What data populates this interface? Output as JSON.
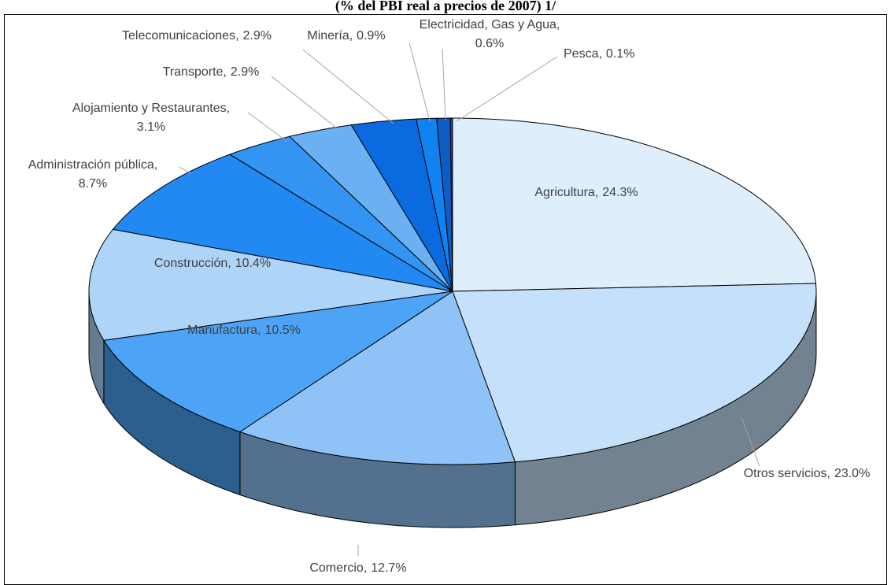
{
  "chart_data": {
    "type": "pie",
    "title": "(% del PBI real a precios de 2007) 1/",
    "categories": [
      "Agricultura",
      "Otros servicios",
      "Comercio",
      "Manufactura",
      "Construcción",
      "Administración pública",
      "Alojamiento y Restaurantes",
      "Transporte",
      "Telecomunicaciones",
      "Minería",
      "Electricidad, Gas y Agua",
      "Pesca"
    ],
    "values": [
      24.3,
      23.0,
      12.7,
      10.5,
      10.4,
      8.7,
      3.1,
      2.9,
      2.9,
      0.9,
      0.6,
      0.1
    ],
    "value_labels": [
      "24.3%",
      "23.0%",
      "12.7%",
      "10.5%",
      "10.4%",
      "8.7%",
      "3.1%",
      "2.9%",
      "2.9%",
      "0.9%",
      "0.6%",
      "0.1%"
    ],
    "label_separator": ",",
    "colors": [
      "#dfeefb",
      "#c5e0fa",
      "#8fc3f7",
      "#4da3f5",
      "#aed4f8",
      "#2289f3",
      "#3394f2",
      "#6bb0f3",
      "#0a6be0",
      "#1183f0",
      "#0d5ec4",
      "#0a4aa0"
    ]
  }
}
